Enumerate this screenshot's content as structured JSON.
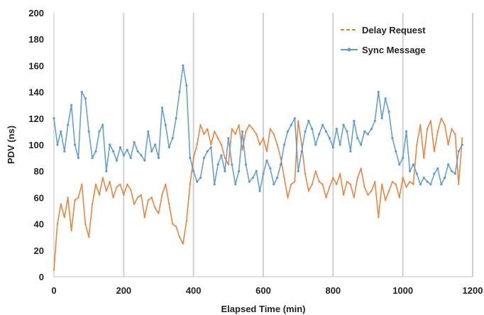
{
  "chart_data": {
    "type": "line",
    "title": "",
    "xlabel": "Elapsed Time (min)",
    "ylabel": "PDV (ns)",
    "xlim": [
      0,
      1200
    ],
    "ylim": [
      0,
      200
    ],
    "xticks": [
      0,
      200,
      400,
      600,
      800,
      1000,
      1200
    ],
    "yticks": [
      0,
      20,
      40,
      60,
      80,
      100,
      120,
      140,
      160,
      180,
      200
    ],
    "grid": "vertical",
    "legend_position": "top-right",
    "series": [
      {
        "name": "Delay Request",
        "color": "#ED7D31",
        "style": "dashed-orange",
        "points": [
          [
            0,
            5
          ],
          [
            10,
            40
          ],
          [
            20,
            55
          ],
          [
            30,
            45
          ],
          [
            40,
            60
          ],
          [
            50,
            35
          ],
          [
            60,
            58
          ],
          [
            70,
            60
          ],
          [
            80,
            70
          ],
          [
            90,
            40
          ],
          [
            100,
            30
          ],
          [
            110,
            55
          ],
          [
            120,
            70
          ],
          [
            130,
            62
          ],
          [
            140,
            75
          ],
          [
            150,
            65
          ],
          [
            160,
            72
          ],
          [
            170,
            60
          ],
          [
            180,
            68
          ],
          [
            190,
            70
          ],
          [
            200,
            62
          ],
          [
            210,
            70
          ],
          [
            220,
            66
          ],
          [
            230,
            55
          ],
          [
            240,
            60
          ],
          [
            250,
            62
          ],
          [
            260,
            45
          ],
          [
            270,
            58
          ],
          [
            280,
            60
          ],
          [
            290,
            52
          ],
          [
            300,
            48
          ],
          [
            310,
            62
          ],
          [
            320,
            70
          ],
          [
            330,
            55
          ],
          [
            340,
            40
          ],
          [
            350,
            38
          ],
          [
            360,
            30
          ],
          [
            370,
            25
          ],
          [
            380,
            42
          ],
          [
            390,
            70
          ],
          [
            400,
            90
          ],
          [
            410,
            100
          ],
          [
            420,
            115
          ],
          [
            430,
            108
          ],
          [
            440,
            112
          ],
          [
            450,
            100
          ],
          [
            460,
            110
          ],
          [
            470,
            105
          ],
          [
            480,
            100
          ],
          [
            490,
            90
          ],
          [
            500,
            85
          ],
          [
            510,
            112
          ],
          [
            520,
            108
          ],
          [
            530,
            115
          ],
          [
            540,
            96
          ],
          [
            550,
            110
          ],
          [
            560,
            115
          ],
          [
            570,
            112
          ],
          [
            580,
            108
          ],
          [
            590,
            100
          ],
          [
            600,
            105
          ],
          [
            610,
            95
          ],
          [
            620,
            112
          ],
          [
            630,
            108
          ],
          [
            640,
            100
          ],
          [
            650,
            90
          ],
          [
            660,
            75
          ],
          [
            670,
            60
          ],
          [
            680,
            70
          ],
          [
            690,
            72
          ],
          [
            700,
            118
          ],
          [
            710,
            100
          ],
          [
            720,
            78
          ],
          [
            730,
            65
          ],
          [
            740,
            70
          ],
          [
            750,
            80
          ],
          [
            760,
            72
          ],
          [
            770,
            70
          ],
          [
            780,
            60
          ],
          [
            790,
            68
          ],
          [
            800,
            75
          ],
          [
            810,
            70
          ],
          [
            820,
            78
          ],
          [
            830,
            62
          ],
          [
            840,
            72
          ],
          [
            850,
            70
          ],
          [
            860,
            60
          ],
          [
            870,
            75
          ],
          [
            880,
            82
          ],
          [
            890,
            68
          ],
          [
            900,
            62
          ],
          [
            910,
            65
          ],
          [
            920,
            72
          ],
          [
            930,
            45
          ],
          [
            940,
            70
          ],
          [
            950,
            58
          ],
          [
            960,
            65
          ],
          [
            970,
            72
          ],
          [
            980,
            70
          ],
          [
            990,
            60
          ],
          [
            1000,
            75
          ],
          [
            1010,
            68
          ],
          [
            1020,
            72
          ],
          [
            1030,
            70
          ],
          [
            1040,
            100
          ],
          [
            1050,
            115
          ],
          [
            1060,
            90
          ],
          [
            1070,
            112
          ],
          [
            1080,
            118
          ],
          [
            1090,
            95
          ],
          [
            1100,
            110
          ],
          [
            1110,
            120
          ],
          [
            1120,
            115
          ],
          [
            1130,
            100
          ],
          [
            1140,
            112
          ],
          [
            1150,
            108
          ],
          [
            1160,
            70
          ],
          [
            1170,
            105
          ]
        ]
      },
      {
        "name": "Sync Message",
        "color": "#5B9BD5",
        "style": "solid-blue-markers",
        "points": [
          [
            0,
            120
          ],
          [
            10,
            100
          ],
          [
            20,
            110
          ],
          [
            30,
            95
          ],
          [
            40,
            115
          ],
          [
            50,
            130
          ],
          [
            60,
            100
          ],
          [
            70,
            90
          ],
          [
            80,
            140
          ],
          [
            90,
            135
          ],
          [
            100,
            110
          ],
          [
            110,
            90
          ],
          [
            120,
            95
          ],
          [
            130,
            110
          ],
          [
            140,
            115
          ],
          [
            150,
            80
          ],
          [
            160,
            100
          ],
          [
            170,
            95
          ],
          [
            180,
            88
          ],
          [
            190,
            98
          ],
          [
            200,
            92
          ],
          [
            210,
            96
          ],
          [
            220,
            90
          ],
          [
            230,
            102
          ],
          [
            240,
            95
          ],
          [
            250,
            92
          ],
          [
            260,
            88
          ],
          [
            270,
            110
          ],
          [
            280,
            95
          ],
          [
            290,
            100
          ],
          [
            300,
            90
          ],
          [
            310,
            128
          ],
          [
            320,
            115
          ],
          [
            330,
            98
          ],
          [
            340,
            105
          ],
          [
            350,
            120
          ],
          [
            360,
            140
          ],
          [
            370,
            160
          ],
          [
            380,
            145
          ],
          [
            390,
            90
          ],
          [
            400,
            80
          ],
          [
            410,
            72
          ],
          [
            420,
            75
          ],
          [
            430,
            90
          ],
          [
            440,
            95
          ],
          [
            450,
            98
          ],
          [
            460,
            70
          ],
          [
            470,
            85
          ],
          [
            480,
            92
          ],
          [
            490,
            80
          ],
          [
            500,
            105
          ],
          [
            510,
            85
          ],
          [
            520,
            70
          ],
          [
            530,
            80
          ],
          [
            540,
            110
          ],
          [
            550,
            85
          ],
          [
            560,
            72
          ],
          [
            570,
            75
          ],
          [
            580,
            80
          ],
          [
            590,
            65
          ],
          [
            600,
            78
          ],
          [
            610,
            88
          ],
          [
            620,
            82
          ],
          [
            630,
            70
          ],
          [
            640,
            75
          ],
          [
            650,
            85
          ],
          [
            660,
            100
          ],
          [
            670,
            110
          ],
          [
            680,
            115
          ],
          [
            690,
            120
          ],
          [
            700,
            80
          ],
          [
            710,
            95
          ],
          [
            720,
            110
          ],
          [
            730,
            118
          ],
          [
            740,
            112
          ],
          [
            750,
            100
          ],
          [
            760,
            108
          ],
          [
            770,
            115
          ],
          [
            780,
            110
          ],
          [
            790,
            105
          ],
          [
            800,
            98
          ],
          [
            810,
            112
          ],
          [
            820,
            100
          ],
          [
            830,
            115
          ],
          [
            840,
            110
          ],
          [
            850,
            95
          ],
          [
            860,
            118
          ],
          [
            870,
            105
          ],
          [
            880,
            100
          ],
          [
            890,
            110
          ],
          [
            900,
            108
          ],
          [
            910,
            112
          ],
          [
            920,
            118
          ],
          [
            930,
            140
          ],
          [
            940,
            120
          ],
          [
            950,
            135
          ],
          [
            960,
            125
          ],
          [
            970,
            105
          ],
          [
            980,
            95
          ],
          [
            990,
            85
          ],
          [
            1000,
            90
          ],
          [
            1010,
            110
          ],
          [
            1020,
            80
          ],
          [
            1030,
            85
          ],
          [
            1040,
            78
          ],
          [
            1050,
            70
          ],
          [
            1060,
            75
          ],
          [
            1070,
            72
          ],
          [
            1080,
            70
          ],
          [
            1090,
            78
          ],
          [
            1100,
            82
          ],
          [
            1110,
            70
          ],
          [
            1120,
            75
          ],
          [
            1130,
            85
          ],
          [
            1140,
            80
          ],
          [
            1150,
            78
          ],
          [
            1160,
            95
          ],
          [
            1170,
            100
          ]
        ]
      }
    ]
  }
}
